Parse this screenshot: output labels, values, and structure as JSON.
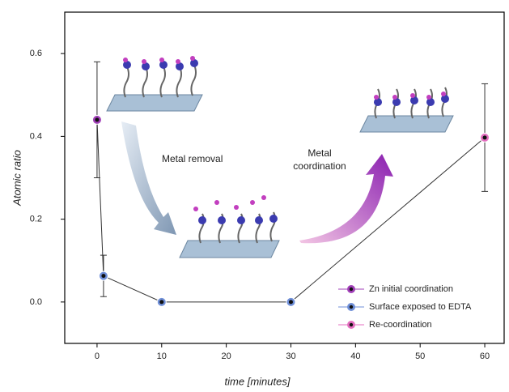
{
  "chart_data": {
    "type": "scatter",
    "x_label": "time [minutes]",
    "y_label": "Atomic ratio",
    "annotations": [
      "Metal removal",
      "Metal coordination"
    ],
    "xlim": [
      -5,
      63
    ],
    "ylim": [
      -0.1,
      0.7
    ],
    "xticks": [
      0,
      10,
      20,
      30,
      40,
      50,
      60
    ],
    "yticks": [
      {
        "value": 0,
        "label": "0.0"
      },
      0.2,
      0.4,
      0.6
    ],
    "series": [
      {
        "name": "Zn initial coordination",
        "color": "#a13fb8",
        "x": [
          0
        ],
        "values": [
          0.44
        ],
        "errors": [
          0.14
        ]
      },
      {
        "name": "Surface exposed to EDTA",
        "color": "#6f8fd8",
        "x": [
          1,
          10,
          30
        ],
        "values": [
          0.063,
          0.0,
          0.0
        ],
        "errors": [
          0.05,
          null,
          null
        ]
      },
      {
        "name": "Re-coordination",
        "color": "#e46fc0",
        "x": [
          60
        ],
        "values": [
          0.397
        ],
        "errors": [
          0.13
        ]
      }
    ]
  }
}
